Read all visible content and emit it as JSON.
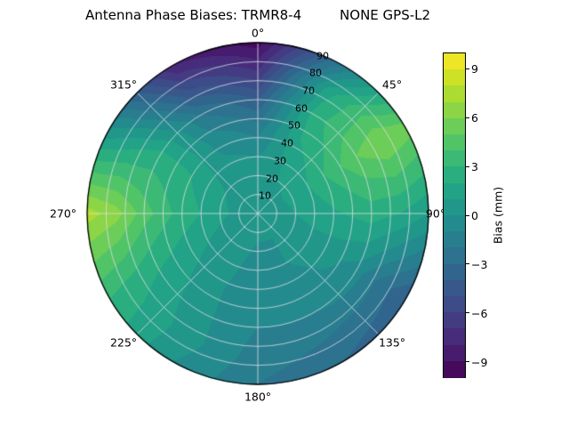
{
  "title": "Antenna Phase Biases: TRMR8-4         NONE GPS-L2",
  "chart_data": {
    "type": "heatmap",
    "projection": "polar",
    "title": "Antenna Phase Biases: TRMR8-4         NONE GPS-L2",
    "theta_labels": [
      "0°",
      "45°",
      "90°",
      "135°",
      "180°",
      "225°",
      "270°",
      "315°"
    ],
    "r_tick_labels": [
      "10",
      "20",
      "30",
      "40",
      "50",
      "60",
      "70",
      "80",
      "90"
    ],
    "azimuth_deg": [
      0,
      30,
      60,
      90,
      120,
      150,
      180,
      210,
      240,
      270,
      300,
      330
    ],
    "zenith_deg": [
      0,
      15,
      30,
      45,
      60,
      75,
      90
    ],
    "values_mm": [
      [
        0.5,
        0.5,
        0.5,
        0.5,
        0.5,
        0.5,
        0.5,
        0.5,
        0.5,
        0.5,
        0.5,
        0.5
      ],
      [
        0.5,
        0.8,
        1.0,
        0.8,
        0.3,
        0.0,
        0.0,
        0.2,
        0.5,
        1.0,
        0.8,
        0.5
      ],
      [
        0.0,
        1.2,
        2.0,
        1.5,
        0.5,
        0.0,
        -0.3,
        0.2,
        1.0,
        2.0,
        1.5,
        0.3
      ],
      [
        -1.5,
        2.0,
        3.5,
        2.0,
        0.3,
        -0.5,
        -0.8,
        0.2,
        1.5,
        3.0,
        2.2,
        -0.5
      ],
      [
        -4.0,
        2.5,
        5.0,
        2.5,
        -0.5,
        -1.0,
        -1.0,
        0.3,
        2.0,
        4.5,
        2.5,
        -2.0
      ],
      [
        -7.0,
        1.5,
        6.0,
        2.0,
        -2.5,
        -2.0,
        -1.5,
        0.5,
        2.5,
        6.5,
        1.5,
        -5.0
      ],
      [
        -9.5,
        -2.0,
        5.5,
        1.0,
        -4.0,
        -3.0,
        -2.0,
        0.0,
        3.0,
        7.5,
        0.0,
        -8.0
      ]
    ],
    "clim": [
      -10,
      10
    ],
    "level_step_mm": 1,
    "colormap": "viridis",
    "colormap_stops": [
      [
        0.0,
        "#440154"
      ],
      [
        0.1,
        "#482475"
      ],
      [
        0.2,
        "#414487"
      ],
      [
        0.3,
        "#355f8d"
      ],
      [
        0.4,
        "#2a788e"
      ],
      [
        0.5,
        "#21918c"
      ],
      [
        0.6,
        "#22a884"
      ],
      [
        0.7,
        "#44bf70"
      ],
      [
        0.8,
        "#7ad151"
      ],
      [
        0.9,
        "#bddf26"
      ],
      [
        1.0,
        "#fde725"
      ]
    ],
    "grid": true,
    "grid_color": "#dcdcea",
    "colorbar": {
      "label": "Bias (mm)",
      "ticks": [
        "9",
        "6",
        "3",
        "0",
        "−3",
        "−6",
        "−9"
      ],
      "tick_values": [
        9,
        6,
        3,
        0,
        -3,
        -6,
        -9
      ]
    }
  }
}
